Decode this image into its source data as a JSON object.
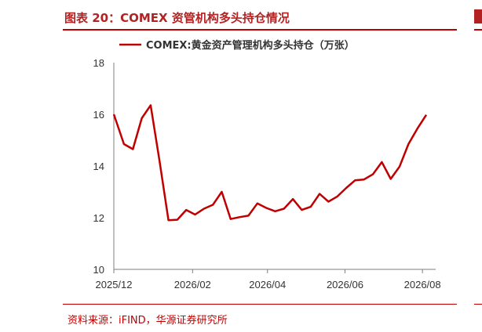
{
  "figure": {
    "title": "图表 20：COMEX 资管机构多头持仓情况",
    "source": "资料来源：iFIND，华源证券研究所"
  },
  "colors": {
    "accent": "#c00000",
    "line": "#c00000",
    "text": "#333333"
  },
  "chart_data": {
    "type": "line",
    "title": "",
    "xlabel": "",
    "ylabel": "",
    "ylim": [
      10,
      18
    ],
    "yticks": [
      "10",
      "12",
      "14",
      "16",
      "18"
    ],
    "xticks": [
      "2025/12",
      "2026/02",
      "2026/04",
      "2026/06",
      "2026/08"
    ],
    "legend_position": "top",
    "grid": false,
    "series": [
      {
        "name": "COMEX:黄金资产管理机构多头持仓（万张）",
        "color": "#c00000",
        "x": [
          "2025/12/01",
          "2025/12/09",
          "2025/12/16",
          "2025/12/23",
          "2025/12/30",
          "2026/01/06",
          "2026/01/13",
          "2026/01/20",
          "2026/01/27",
          "2026/02/03",
          "2026/02/10",
          "2026/02/17",
          "2026/02/24",
          "2026/03/03",
          "2026/03/10",
          "2026/03/17",
          "2026/03/24",
          "2026/03/31",
          "2026/04/07",
          "2026/04/14",
          "2026/04/21",
          "2026/04/28",
          "2026/05/05",
          "2026/05/12",
          "2026/05/19",
          "2026/05/26",
          "2026/06/02",
          "2026/06/09",
          "2026/06/16",
          "2026/06/23",
          "2026/06/30",
          "2026/07/07",
          "2026/07/14",
          "2026/07/21",
          "2026/07/28",
          "2026/08/04"
        ],
        "values": [
          16.0,
          14.85,
          14.65,
          15.85,
          16.35,
          14.2,
          11.9,
          11.92,
          12.3,
          12.12,
          12.35,
          12.5,
          13.0,
          11.95,
          12.02,
          12.08,
          12.55,
          12.38,
          12.25,
          12.35,
          12.72,
          12.3,
          12.42,
          12.92,
          12.62,
          12.82,
          13.15,
          13.45,
          13.48,
          13.68,
          14.15,
          13.5,
          13.98,
          14.85,
          15.45,
          15.98
        ]
      }
    ]
  }
}
